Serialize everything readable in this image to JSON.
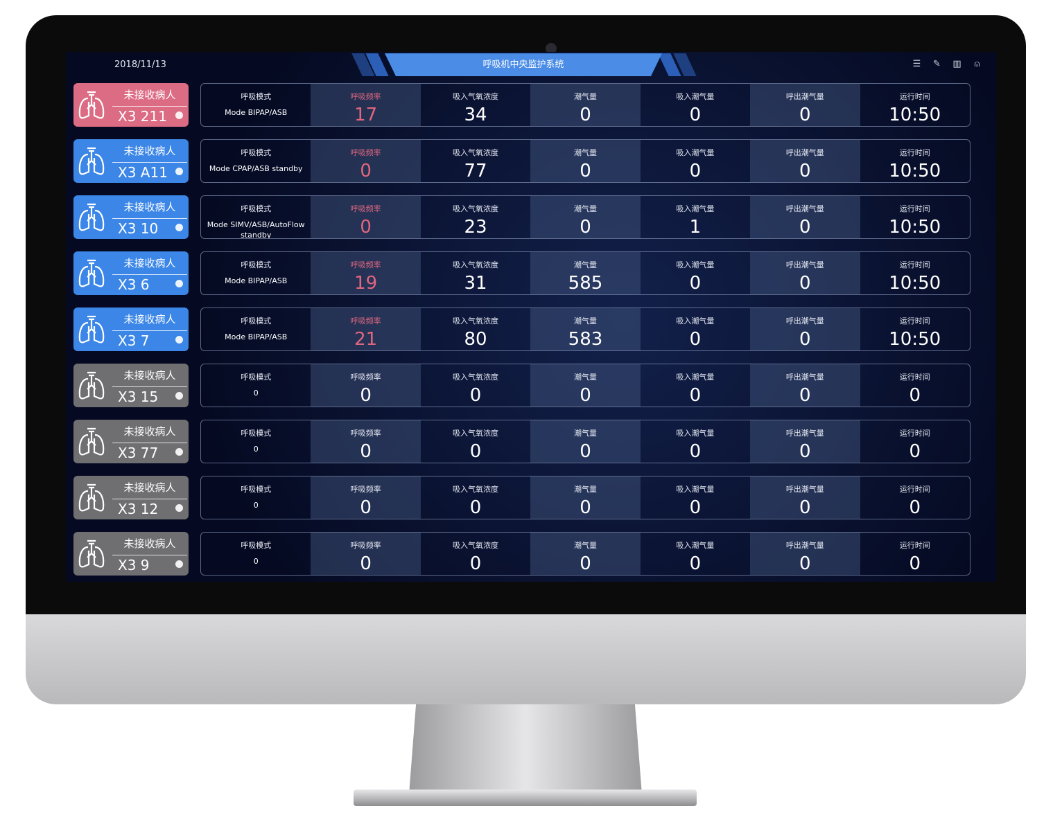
{
  "header": {
    "date": "2018/11/13",
    "title": "呼吸机中央监护系统",
    "icons": [
      "list-icon",
      "edit-icon",
      "layout-icon",
      "user-icon"
    ]
  },
  "colors": {
    "alarm": "#dc6b84",
    "active": "#3b86e6",
    "inactive": "#6f6f72",
    "freq_highlight": "#e0667f"
  },
  "labels": [
    "呼吸模式",
    "呼吸频率",
    "吸入气氧浓度",
    "潮气量",
    "吸入潮气量",
    "呼出潮气量",
    "运行时间"
  ],
  "rows": [
    {
      "status": "未接收病人",
      "bed": "X3 211",
      "state": "alarm",
      "values": [
        "Mode BIPAP/ASB",
        "17",
        "34",
        "0",
        "0",
        "0",
        "10:50"
      ]
    },
    {
      "status": "未接收病人",
      "bed": "X3 A11",
      "state": "active",
      "values": [
        "Mode CPAP/ASB standby",
        "0",
        "77",
        "0",
        "0",
        "0",
        "10:50"
      ]
    },
    {
      "status": "未接收病人",
      "bed": "X3 10",
      "state": "active",
      "values": [
        "Mode SIMV/ASB/AutoFlow standby",
        "0",
        "23",
        "0",
        "1",
        "0",
        "10:50"
      ]
    },
    {
      "status": "未接收病人",
      "bed": "X3 6",
      "state": "active",
      "values": [
        "Mode BIPAP/ASB",
        "19",
        "31",
        "585",
        "0",
        "0",
        "10:50"
      ]
    },
    {
      "status": "未接收病人",
      "bed": "X3 7",
      "state": "active",
      "values": [
        "Mode BIPAP/ASB",
        "21",
        "80",
        "583",
        "0",
        "0",
        "10:50"
      ]
    },
    {
      "status": "未接收病人",
      "bed": "X3 15",
      "state": "inactive",
      "values": [
        "0",
        "0",
        "0",
        "0",
        "0",
        "0",
        "0"
      ]
    },
    {
      "status": "未接收病人",
      "bed": "X3 77",
      "state": "inactive",
      "values": [
        "0",
        "0",
        "0",
        "0",
        "0",
        "0",
        "0"
      ]
    },
    {
      "status": "未接收病人",
      "bed": "X3 12",
      "state": "inactive",
      "values": [
        "0",
        "0",
        "0",
        "0",
        "0",
        "0",
        "0"
      ]
    },
    {
      "status": "未接收病人",
      "bed": "X3 9",
      "state": "inactive",
      "values": [
        "0",
        "0",
        "0",
        "0",
        "0",
        "0",
        "0"
      ]
    }
  ]
}
